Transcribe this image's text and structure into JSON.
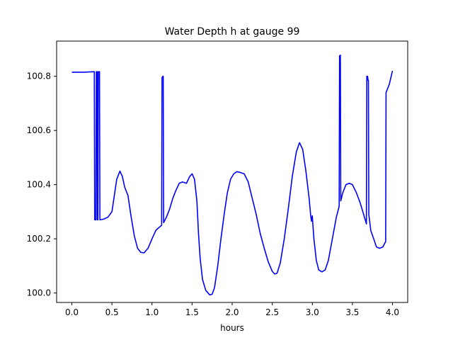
{
  "chart_data": {
    "type": "line",
    "title": "Water Depth h at gauge 99",
    "xlabel": "hours",
    "ylabel": "",
    "xlim": [
      -0.19,
      4.19
    ],
    "ylim": [
      99.965,
      100.93
    ],
    "x_ticks": [
      0.0,
      0.5,
      1.0,
      1.5,
      2.0,
      2.5,
      3.0,
      3.5,
      4.0
    ],
    "x_tick_labels": [
      "0.0",
      "0.5",
      "1.0",
      "1.5",
      "2.0",
      "2.5",
      "3.0",
      "3.5",
      "4.0"
    ],
    "y_ticks": [
      100.0,
      100.2,
      100.4,
      100.6,
      100.8
    ],
    "y_tick_labels": [
      "100.0",
      "100.2",
      "100.4",
      "100.6",
      "100.8"
    ],
    "grid": false,
    "series": [
      {
        "color": "#0000ff",
        "points": [
          [
            0.0,
            100.815
          ],
          [
            0.15,
            100.815
          ],
          [
            0.28,
            100.817
          ],
          [
            0.285,
            100.27
          ],
          [
            0.3,
            100.27
          ],
          [
            0.305,
            100.817
          ],
          [
            0.315,
            100.817
          ],
          [
            0.318,
            100.27
          ],
          [
            0.325,
            100.27
          ],
          [
            0.33,
            100.817
          ],
          [
            0.345,
            100.817
          ],
          [
            0.35,
            100.27
          ],
          [
            0.4,
            100.273
          ],
          [
            0.45,
            100.28
          ],
          [
            0.5,
            100.3
          ],
          [
            0.53,
            100.36
          ],
          [
            0.56,
            100.42
          ],
          [
            0.6,
            100.45
          ],
          [
            0.63,
            100.43
          ],
          [
            0.66,
            100.39
          ],
          [
            0.7,
            100.36
          ],
          [
            0.74,
            100.28
          ],
          [
            0.78,
            100.21
          ],
          [
            0.82,
            100.165
          ],
          [
            0.86,
            100.15
          ],
          [
            0.9,
            100.148
          ],
          [
            0.95,
            100.165
          ],
          [
            1.0,
            100.2
          ],
          [
            1.05,
            100.232
          ],
          [
            1.1,
            100.245
          ],
          [
            1.12,
            100.25
          ],
          [
            1.125,
            100.795
          ],
          [
            1.135,
            100.8
          ],
          [
            1.14,
            100.8
          ],
          [
            1.145,
            100.26
          ],
          [
            1.18,
            100.28
          ],
          [
            1.22,
            100.31
          ],
          [
            1.26,
            100.35
          ],
          [
            1.3,
            100.38
          ],
          [
            1.34,
            100.405
          ],
          [
            1.38,
            100.41
          ],
          [
            1.43,
            100.405
          ],
          [
            1.47,
            100.43
          ],
          [
            1.5,
            100.44
          ],
          [
            1.53,
            100.42
          ],
          [
            1.56,
            100.34
          ],
          [
            1.58,
            100.22
          ],
          [
            1.6,
            100.13
          ],
          [
            1.63,
            100.05
          ],
          [
            1.67,
            100.01
          ],
          [
            1.72,
            99.993
          ],
          [
            1.75,
            99.995
          ],
          [
            1.78,
            100.02
          ],
          [
            1.82,
            100.1
          ],
          [
            1.86,
            100.2
          ],
          [
            1.9,
            100.29
          ],
          [
            1.94,
            100.37
          ],
          [
            1.98,
            100.42
          ],
          [
            2.02,
            100.44
          ],
          [
            2.06,
            100.448
          ],
          [
            2.1,
            100.445
          ],
          [
            2.15,
            100.44
          ],
          [
            2.2,
            100.41
          ],
          [
            2.25,
            100.35
          ],
          [
            2.3,
            100.29
          ],
          [
            2.35,
            100.22
          ],
          [
            2.4,
            100.165
          ],
          [
            2.45,
            100.115
          ],
          [
            2.5,
            100.08
          ],
          [
            2.53,
            100.07
          ],
          [
            2.56,
            100.073
          ],
          [
            2.6,
            100.11
          ],
          [
            2.65,
            100.2
          ],
          [
            2.7,
            100.31
          ],
          [
            2.75,
            100.43
          ],
          [
            2.8,
            100.52
          ],
          [
            2.84,
            100.555
          ],
          [
            2.88,
            100.53
          ],
          [
            2.92,
            100.45
          ],
          [
            2.96,
            100.35
          ],
          [
            2.98,
            100.285
          ],
          [
            2.99,
            100.265
          ],
          [
            3.0,
            100.285
          ],
          [
            3.005,
            100.26
          ],
          [
            3.02,
            100.2
          ],
          [
            3.05,
            100.12
          ],
          [
            3.08,
            100.085
          ],
          [
            3.12,
            100.078
          ],
          [
            3.16,
            100.085
          ],
          [
            3.2,
            100.12
          ],
          [
            3.25,
            100.2
          ],
          [
            3.3,
            100.28
          ],
          [
            3.335,
            100.32
          ],
          [
            3.34,
            100.875
          ],
          [
            3.35,
            100.878
          ],
          [
            3.355,
            100.34
          ],
          [
            3.38,
            100.37
          ],
          [
            3.42,
            100.4
          ],
          [
            3.46,
            100.405
          ],
          [
            3.5,
            100.4
          ],
          [
            3.55,
            100.37
          ],
          [
            3.6,
            100.33
          ],
          [
            3.64,
            100.29
          ],
          [
            3.675,
            100.255
          ],
          [
            3.68,
            100.8
          ],
          [
            3.69,
            100.8
          ],
          [
            3.695,
            100.785
          ],
          [
            3.7,
            100.785
          ],
          [
            3.705,
            100.29
          ],
          [
            3.73,
            100.23
          ],
          [
            3.76,
            100.205
          ],
          [
            3.8,
            100.17
          ],
          [
            3.84,
            100.165
          ],
          [
            3.88,
            100.17
          ],
          [
            3.915,
            100.19
          ],
          [
            3.92,
            100.74
          ],
          [
            3.96,
            100.77
          ],
          [
            4.0,
            100.82
          ]
        ]
      }
    ]
  }
}
